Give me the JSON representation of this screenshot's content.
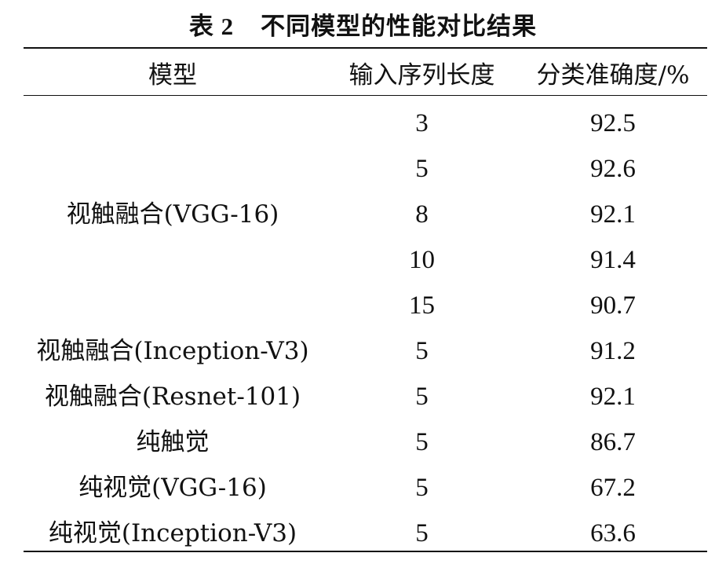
{
  "caption": {
    "number": "表 2",
    "title": "不同模型的性能对比结果"
  },
  "headers": [
    "模型",
    "输入序列长度",
    "分类准确度/%"
  ],
  "group": {
    "model": "视触融合(VGG-16)"
  },
  "rows": [
    {
      "length": "3",
      "accuracy": "92.5"
    },
    {
      "length": "5",
      "accuracy": "92.6"
    },
    {
      "length": "8",
      "accuracy": "92.1"
    },
    {
      "length": "10",
      "accuracy": "91.4"
    },
    {
      "length": "15",
      "accuracy": "90.7"
    },
    {
      "model": "视触融合(Inception-V3)",
      "length": "5",
      "accuracy": "91.2"
    },
    {
      "model": "视触融合(Resnet-101)",
      "length": "5",
      "accuracy": "92.1"
    },
    {
      "model": "纯触觉",
      "length": "5",
      "accuracy": "86.7"
    },
    {
      "model": "纯视觉(VGG-16)",
      "length": "5",
      "accuracy": "67.2"
    },
    {
      "model": "纯视觉(Inception-V3)",
      "length": "5",
      "accuracy": "63.6"
    }
  ]
}
